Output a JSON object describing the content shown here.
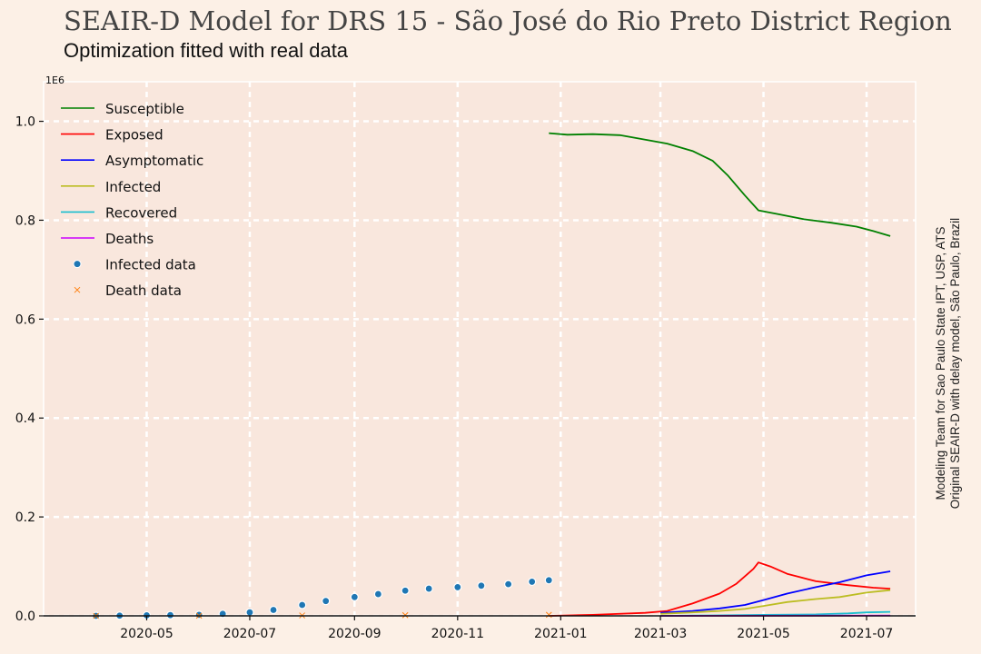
{
  "chart_data": {
    "type": "line",
    "title": "SEAIR-D Model for DRS 15 - São José do Rio Preto District Region",
    "subtitle": "Optimization fitted with real data",
    "side_note": [
      "Modeling Team for Sao Paulo State IPT, USP, ATS",
      "Original SEAIR-D with delay model, São Paulo, Brazil"
    ],
    "y_scale_label": "1E6",
    "ylim": [
      0,
      1.08
    ],
    "yticks": [
      "0.0",
      "0.2",
      "0.4",
      "0.6",
      "0.8",
      "1.0"
    ],
    "ytick_values": [
      0,
      0.2,
      0.4,
      0.6,
      0.8,
      1.0
    ],
    "xlim": [
      "2020-03-01",
      "2021-07-30"
    ],
    "xticks": [
      "2020-05",
      "2020-07",
      "2020-09",
      "2020-11",
      "2021-01",
      "2021-03",
      "2021-05",
      "2021-07"
    ],
    "xtick_dates": [
      "2020-05-01",
      "2020-07-01",
      "2020-09-01",
      "2020-11-01",
      "2021-01-01",
      "2021-03-01",
      "2021-05-01",
      "2021-07-01"
    ],
    "grid": true,
    "legend_position": "top-left",
    "series": [
      {
        "name": "Susceptible",
        "color": "#008000",
        "x": [
          "2020-12-25",
          "2021-01-05",
          "2021-01-20",
          "2021-02-05",
          "2021-02-20",
          "2021-03-05",
          "2021-03-20",
          "2021-04-01",
          "2021-04-10",
          "2021-04-20",
          "2021-04-28",
          "2021-05-10",
          "2021-05-25",
          "2021-06-10",
          "2021-06-25",
          "2021-07-05",
          "2021-07-15"
        ],
        "values": [
          0.976,
          0.973,
          0.974,
          0.972,
          0.963,
          0.955,
          0.94,
          0.92,
          0.89,
          0.85,
          0.82,
          0.812,
          0.802,
          0.795,
          0.787,
          0.778,
          0.768
        ]
      },
      {
        "name": "Exposed",
        "color": "#ff0000",
        "x": [
          "2020-12-25",
          "2021-01-20",
          "2021-02-20",
          "2021-03-05",
          "2021-03-20",
          "2021-04-05",
          "2021-04-15",
          "2021-04-25",
          "2021-04-28",
          "2021-05-05",
          "2021-05-15",
          "2021-06-01",
          "2021-06-20",
          "2021-07-05",
          "2021-07-15"
        ],
        "values": [
          0.0,
          0.002,
          0.006,
          0.01,
          0.025,
          0.045,
          0.065,
          0.095,
          0.108,
          0.1,
          0.085,
          0.07,
          0.062,
          0.057,
          0.055
        ]
      },
      {
        "name": "Asymptomatic",
        "color": "#0000ff",
        "x": [
          "2021-03-01",
          "2021-03-20",
          "2021-04-05",
          "2021-04-20",
          "2021-05-01",
          "2021-05-15",
          "2021-06-01",
          "2021-06-15",
          "2021-07-01",
          "2021-07-15"
        ],
        "values": [
          0.006,
          0.01,
          0.015,
          0.022,
          0.032,
          0.045,
          0.058,
          0.068,
          0.082,
          0.09
        ]
      },
      {
        "name": "Infected",
        "color": "#bcbd22",
        "x": [
          "2021-03-01",
          "2021-03-20",
          "2021-04-05",
          "2021-04-20",
          "2021-05-01",
          "2021-05-15",
          "2021-06-01",
          "2021-06-15",
          "2021-07-01",
          "2021-07-15"
        ],
        "values": [
          0.004,
          0.007,
          0.01,
          0.014,
          0.02,
          0.028,
          0.034,
          0.038,
          0.047,
          0.052
        ]
      },
      {
        "name": "Recovered",
        "color": "#17becf",
        "x": [
          "2021-03-01",
          "2021-04-01",
          "2021-05-01",
          "2021-06-01",
          "2021-06-20",
          "2021-07-01",
          "2021-07-15"
        ],
        "values": [
          0.0,
          0.001,
          0.002,
          0.003,
          0.005,
          0.007,
          0.008
        ]
      },
      {
        "name": "Deaths",
        "color": "#cc00ff",
        "x": [
          "2021-03-01",
          "2021-07-15"
        ],
        "values": [
          0.0,
          0.0005
        ]
      }
    ],
    "scatter_series": [
      {
        "name": "Infected data",
        "color": "#1f77b4",
        "marker": "circle",
        "x": [
          "2020-04-01",
          "2020-04-15",
          "2020-05-01",
          "2020-05-15",
          "2020-06-01",
          "2020-06-15",
          "2020-07-01",
          "2020-07-15",
          "2020-08-01",
          "2020-08-15",
          "2020-09-01",
          "2020-09-15",
          "2020-10-01",
          "2020-10-15",
          "2020-11-01",
          "2020-11-15",
          "2020-12-01",
          "2020-12-15",
          "2020-12-25"
        ],
        "values": [
          0.0,
          0.0005,
          0.001,
          0.0015,
          0.002,
          0.004,
          0.007,
          0.012,
          0.022,
          0.03,
          0.038,
          0.044,
          0.051,
          0.055,
          0.058,
          0.061,
          0.064,
          0.069,
          0.072
        ]
      },
      {
        "name": "Death data",
        "color": "#ff7f0e",
        "marker": "x",
        "x": [
          "2020-04-01",
          "2020-06-01",
          "2020-08-01",
          "2020-10-01",
          "2020-12-25"
        ],
        "values": [
          0.0,
          0.0002,
          0.0008,
          0.0014,
          0.002
        ]
      }
    ]
  }
}
